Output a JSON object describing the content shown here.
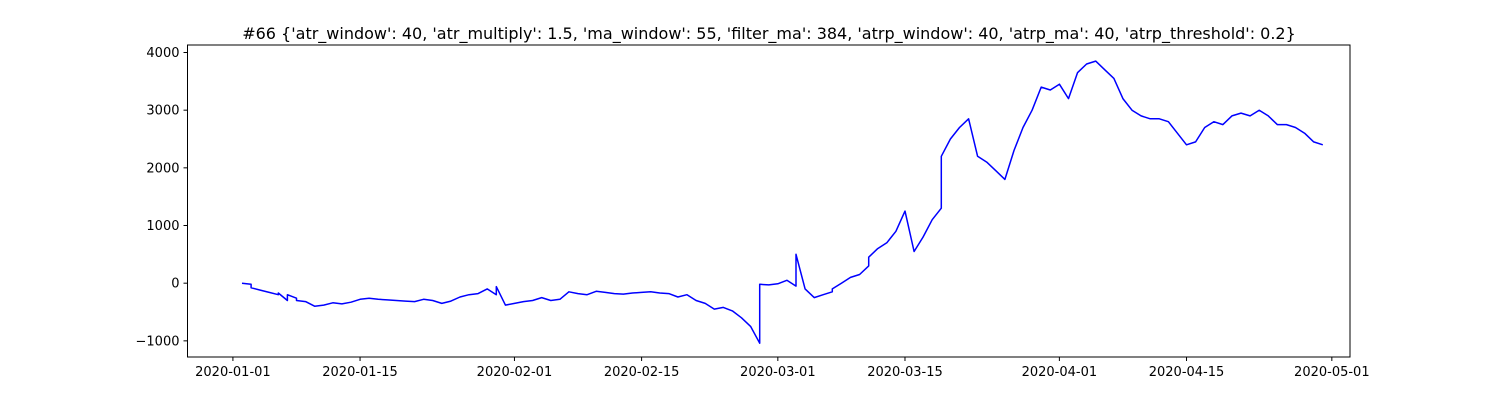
{
  "chart_data": {
    "type": "line",
    "title": "#66 {'atr_window': 40, 'atr_multiply': 1.5, 'ma_window': 55, 'filter_ma': 384, 'atrp_window': 40, 'atrp_ma': 40, 'atrp_threshold': 0.2}",
    "xlabel": "",
    "ylabel": "",
    "xlim": [
      "2019-12-27",
      "2020-05-03"
    ],
    "ylim": [
      -1280,
      4130
    ],
    "grid": false,
    "x_tick_labels": [
      "2020-01-01",
      "2020-01-15",
      "2020-02-01",
      "2020-02-15",
      "2020-03-01",
      "2020-03-15",
      "2020-04-01",
      "2020-04-15",
      "2020-05-01"
    ],
    "y_tick_values": [
      -1000,
      0,
      1000,
      2000,
      3000,
      4000
    ],
    "y_tick_labels": [
      "−1000",
      "0",
      "1000",
      "2000",
      "3000",
      "4000"
    ],
    "line_color": "#0000ff",
    "series": [
      {
        "x": [
          "2020-01-02",
          "2020-01-03",
          "2020-01-03",
          "2020-01-04",
          "2020-01-05",
          "2020-01-06",
          "2020-01-06",
          "2020-01-07",
          "2020-01-07",
          "2020-01-08",
          "2020-01-08",
          "2020-01-09",
          "2020-01-10",
          "2020-01-11",
          "2020-01-12",
          "2020-01-13",
          "2020-01-14",
          "2020-01-15",
          "2020-01-16",
          "2020-01-17",
          "2020-01-18",
          "2020-01-19",
          "2020-01-20",
          "2020-01-21",
          "2020-01-22",
          "2020-01-23",
          "2020-01-24",
          "2020-01-25",
          "2020-01-26",
          "2020-01-27",
          "2020-01-28",
          "2020-01-29",
          "2020-01-30",
          "2020-01-30",
          "2020-01-31",
          "2020-02-01",
          "2020-02-02",
          "2020-02-03",
          "2020-02-04",
          "2020-02-05",
          "2020-02-06",
          "2020-02-07",
          "2020-02-08",
          "2020-02-09",
          "2020-02-10",
          "2020-02-11",
          "2020-02-12",
          "2020-02-13",
          "2020-02-14",
          "2020-02-15",
          "2020-02-16",
          "2020-02-17",
          "2020-02-18",
          "2020-02-19",
          "2020-02-20",
          "2020-02-21",
          "2020-02-22",
          "2020-02-23",
          "2020-02-24",
          "2020-02-25",
          "2020-02-26",
          "2020-02-27",
          "2020-02-28",
          "2020-02-28",
          "2020-02-29",
          "2020-03-01",
          "2020-03-02",
          "2020-03-03",
          "2020-03-03",
          "2020-03-04",
          "2020-03-05",
          "2020-03-06",
          "2020-03-07",
          "2020-03-07",
          "2020-03-08",
          "2020-03-09",
          "2020-03-10",
          "2020-03-11",
          "2020-03-11",
          "2020-03-12",
          "2020-03-13",
          "2020-03-14",
          "2020-03-15",
          "2020-03-16",
          "2020-03-17",
          "2020-03-18",
          "2020-03-19",
          "2020-03-19",
          "2020-03-20",
          "2020-03-21",
          "2020-03-22",
          "2020-03-23",
          "2020-03-24",
          "2020-03-25",
          "2020-03-26",
          "2020-03-27",
          "2020-03-28",
          "2020-03-29",
          "2020-03-30",
          "2020-03-31",
          "2020-04-01",
          "2020-04-02",
          "2020-04-03",
          "2020-04-04",
          "2020-04-05",
          "2020-04-06",
          "2020-04-07",
          "2020-04-08",
          "2020-04-09",
          "2020-04-10",
          "2020-04-11",
          "2020-04-12",
          "2020-04-13",
          "2020-04-14",
          "2020-04-15",
          "2020-04-16",
          "2020-04-17",
          "2020-04-18",
          "2020-04-19",
          "2020-04-20",
          "2020-04-21",
          "2020-04-22",
          "2020-04-23",
          "2020-04-24",
          "2020-04-25",
          "2020-04-26",
          "2020-04-27",
          "2020-04-28",
          "2020-04-29",
          "2020-04-30"
        ],
        "y": [
          0,
          -20,
          -80,
          -120,
          -160,
          -200,
          -170,
          -300,
          -200,
          -260,
          -300,
          -320,
          -400,
          -380,
          -340,
          -360,
          -330,
          -280,
          -260,
          -280,
          -290,
          -300,
          -310,
          -320,
          -280,
          -300,
          -350,
          -310,
          -240,
          -200,
          -180,
          -100,
          -200,
          -60,
          -380,
          -350,
          -320,
          -300,
          -250,
          -300,
          -280,
          -150,
          -180,
          -200,
          -140,
          -160,
          -180,
          -190,
          -170,
          -160,
          -150,
          -170,
          -180,
          -240,
          -200,
          -300,
          -350,
          -450,
          -420,
          -480,
          -600,
          -750,
          -1040,
          -20,
          -30,
          -10,
          50,
          -50,
          500,
          -100,
          -250,
          -200,
          -150,
          -100,
          0,
          100,
          150,
          300,
          450,
          600,
          700,
          900,
          1250,
          550,
          800,
          1100,
          1300,
          2200,
          2500,
          2700,
          2850,
          2200,
          2100,
          1950,
          1800,
          2300,
          2700,
          3000,
          3400,
          3350,
          3450,
          3200,
          3650,
          3800,
          3850,
          3700,
          3550,
          3200,
          3000,
          2900,
          2850,
          2850,
          2800,
          2600,
          2400,
          2450,
          2700,
          2800,
          2750,
          2900,
          2950,
          2900,
          3000,
          2900,
          2750,
          2750,
          2700,
          2600,
          2450,
          2400
        ]
      }
    ]
  }
}
